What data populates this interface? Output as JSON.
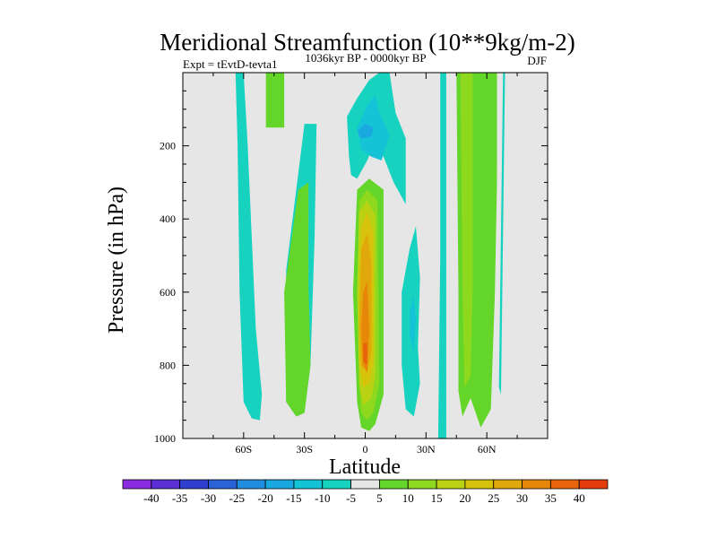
{
  "chart_data": {
    "type": "contour",
    "title": "Meridional Streamfunction (10**9kg/m-2)",
    "subtitle_left": "Expt = tEvtD-tevta1",
    "subtitle_center": "1036kyr BP - 0000kyr BP",
    "subtitle_right": "DJF",
    "xlabel": "Latitude",
    "ylabel": "Pressure (in hPa)",
    "xlim": [
      -90,
      90
    ],
    "ylim": [
      1000,
      0
    ],
    "x_ticks": [
      -60,
      -30,
      0,
      30,
      60
    ],
    "x_tick_labels": [
      "60S",
      "30S",
      "0",
      "30N",
      "60N"
    ],
    "y_ticks": [
      200,
      400,
      600,
      800,
      1000
    ],
    "y_tick_labels": [
      "200",
      "400",
      "600",
      "800",
      "1000"
    ],
    "colorbar": {
      "levels": [
        -40,
        -35,
        -30,
        -25,
        -20,
        -15,
        -10,
        -5,
        5,
        10,
        15,
        20,
        25,
        30,
        35,
        40
      ],
      "labels": [
        "-40",
        "-35",
        "-30",
        "-25",
        "-20",
        "-15",
        "-10",
        "-5",
        "5",
        "10",
        "15",
        "20",
        "25",
        "30",
        "35",
        "40"
      ],
      "colors": [
        "#8a2be2",
        "#5a2fd6",
        "#2f3fd0",
        "#2a62d8",
        "#1f8ee0",
        "#1aa8e0",
        "#14c3d6",
        "#18d2c0",
        "#e6e6e6",
        "#64d62a",
        "#8ed81e",
        "#b9d214",
        "#d7c30c",
        "#e0a80a",
        "#e6870a",
        "#e8640a",
        "#e43c0a"
      ]
    },
    "regions": [
      {
        "name": "sh-polar-negative",
        "value": -5,
        "color": "#18d2c0",
        "outline": [
          [
            -64,
            0
          ],
          [
            -60,
            0
          ],
          [
            -58,
            200
          ],
          [
            -54,
            700
          ],
          [
            -51,
            880
          ],
          [
            -52,
            950
          ],
          [
            -56,
            945
          ],
          [
            -60,
            900
          ],
          [
            -62,
            600
          ],
          [
            -63,
            200
          ]
        ]
      },
      {
        "name": "sh-subpolar-positive",
        "value": 5,
        "color": "#64d62a",
        "outline": [
          [
            -49,
            0
          ],
          [
            -40,
            0
          ],
          [
            -40,
            150
          ],
          [
            -49,
            150
          ]
        ]
      },
      {
        "name": "sh-midlat-negative",
        "value": -5,
        "color": "#18d2c0",
        "outline": [
          [
            -39,
            540
          ],
          [
            -30,
            140
          ],
          [
            -24,
            140
          ],
          [
            -25,
            450
          ],
          [
            -27,
            800
          ],
          [
            -30,
            930
          ],
          [
            -34,
            940
          ],
          [
            -39,
            900
          ]
        ]
      },
      {
        "name": "sh-ferrel-positive",
        "value": 5,
        "color": "#64d62a",
        "outline": [
          [
            -39,
            900
          ],
          [
            -40,
            600
          ],
          [
            -36,
            440
          ],
          [
            -33,
            320
          ],
          [
            -28,
            300
          ],
          [
            -28,
            580
          ],
          [
            -27,
            800
          ],
          [
            -30,
            930
          ],
          [
            -34,
            940
          ]
        ]
      },
      {
        "name": "tropical-upper-negative",
        "value": -5,
        "color": "#18d2c0",
        "outline": [
          [
            -8,
            230
          ],
          [
            -9,
            120
          ],
          [
            -4,
            70
          ],
          [
            2,
            20
          ],
          [
            7,
            0
          ],
          [
            12,
            0
          ],
          [
            15,
            110
          ],
          [
            20,
            180
          ],
          [
            20,
            360
          ],
          [
            14,
            300
          ],
          [
            9,
            230
          ],
          [
            4,
            200
          ],
          [
            1,
            240
          ],
          [
            -4,
            290
          ],
          [
            -7,
            280
          ]
        ]
      },
      {
        "name": "tropical-upper-negative-10",
        "value": -10,
        "color": "#14c3d6",
        "outline": [
          [
            -4,
            150
          ],
          [
            1,
            90
          ],
          [
            5,
            60
          ],
          [
            7,
            110
          ],
          [
            12,
            170
          ],
          [
            8,
            240
          ],
          [
            3,
            230
          ],
          [
            -2,
            210
          ]
        ]
      },
      {
        "name": "tropical-upper-negative-15",
        "value": -15,
        "color": "#1aa8e0",
        "outline": [
          [
            -4,
            160
          ],
          [
            0,
            140
          ],
          [
            4,
            150
          ],
          [
            3,
            175
          ],
          [
            -2,
            180
          ]
        ]
      },
      {
        "name": "hadley-positive-5",
        "value": 5,
        "color": "#64d62a",
        "outline": [
          [
            -4,
            320
          ],
          [
            2,
            290
          ],
          [
            9,
            320
          ],
          [
            9,
            880
          ],
          [
            5,
            960
          ],
          [
            2,
            980
          ],
          [
            -2,
            970
          ],
          [
            -4,
            900
          ],
          [
            -6,
            600
          ]
        ]
      },
      {
        "name": "hadley-positive-10",
        "value": 10,
        "color": "#8ed81e",
        "outline": [
          [
            -3,
            350
          ],
          [
            1,
            320
          ],
          [
            6,
            350
          ],
          [
            7,
            850
          ],
          [
            4,
            930
          ],
          [
            1,
            950
          ],
          [
            -2,
            930
          ],
          [
            -3,
            850
          ],
          [
            -4,
            600
          ]
        ]
      },
      {
        "name": "hadley-positive-15",
        "value": 15,
        "color": "#b9d214",
        "outline": [
          [
            -3,
            380
          ],
          [
            1,
            350
          ],
          [
            5,
            390
          ],
          [
            5,
            830
          ],
          [
            3,
            890
          ],
          [
            -1,
            910
          ],
          [
            -3,
            850
          ],
          [
            -4,
            600
          ]
        ]
      },
      {
        "name": "hadley-positive-20",
        "value": 20,
        "color": "#d7c30c",
        "outline": [
          [
            -2,
            420
          ],
          [
            1,
            380
          ],
          [
            4,
            440
          ],
          [
            4,
            790
          ],
          [
            2,
            850
          ],
          [
            -1,
            860
          ],
          [
            -3,
            790
          ],
          [
            -3,
            600
          ]
        ]
      },
      {
        "name": "hadley-positive-25",
        "value": 25,
        "color": "#e0a80a",
        "outline": [
          [
            -2,
            480
          ],
          [
            1,
            440
          ],
          [
            3,
            520
          ],
          [
            3,
            760
          ],
          [
            1,
            820
          ],
          [
            -2,
            800
          ],
          [
            -3,
            700
          ]
        ]
      },
      {
        "name": "hadley-positive-30",
        "value": 30,
        "color": "#e6870a",
        "outline": [
          [
            -1,
            600
          ],
          [
            1,
            570
          ],
          [
            2,
            700
          ],
          [
            1,
            820
          ],
          [
            -1,
            800
          ],
          [
            -2,
            700
          ]
        ]
      },
      {
        "name": "hadley-positive-35",
        "value": 35,
        "color": "#e8640a",
        "outline": [
          [
            -1,
            740
          ],
          [
            1,
            740
          ],
          [
            1,
            800
          ],
          [
            -1,
            790
          ]
        ]
      },
      {
        "name": "nh-midlat-negative",
        "value": -5,
        "color": "#18d2c0",
        "outline": [
          [
            18,
            600
          ],
          [
            22,
            480
          ],
          [
            25,
            420
          ],
          [
            27,
            560
          ],
          [
            26,
            750
          ],
          [
            27,
            850
          ],
          [
            24,
            940
          ],
          [
            20,
            920
          ],
          [
            18,
            800
          ]
        ]
      },
      {
        "name": "nh-midlat-negative-10",
        "value": -10,
        "color": "#14c3d6",
        "outline": [
          [
            22,
            650
          ],
          [
            24,
            610
          ],
          [
            25,
            680
          ],
          [
            24,
            760
          ],
          [
            22,
            720
          ]
        ]
      },
      {
        "name": "nh-column-negative",
        "value": -5,
        "color": "#18d2c0",
        "outline": [
          [
            37,
            0
          ],
          [
            40,
            0
          ],
          [
            40,
            1000
          ],
          [
            36,
            1000
          ],
          [
            37,
            500
          ]
        ]
      },
      {
        "name": "nh-ferrel-positive",
        "value": 5,
        "color": "#64d62a",
        "outline": [
          [
            45,
            0
          ],
          [
            55,
            0
          ],
          [
            61,
            0
          ],
          [
            65,
            0
          ],
          [
            65,
            300
          ],
          [
            64,
            600
          ],
          [
            62,
            920
          ],
          [
            57,
            970
          ],
          [
            52,
            890
          ],
          [
            48,
            940
          ],
          [
            46,
            870
          ],
          [
            46,
            600
          ]
        ]
      },
      {
        "name": "nh-ferrel-positive-10",
        "value": 10,
        "color": "#8ed81e",
        "outline": [
          [
            47,
            0
          ],
          [
            53,
            0
          ],
          [
            53,
            600
          ],
          [
            52,
            830
          ],
          [
            49,
            860
          ],
          [
            48,
            600
          ]
        ]
      },
      {
        "name": "nh-high-negative",
        "value": -5,
        "color": "#18d2c0",
        "outline": [
          [
            68,
            0
          ],
          [
            69,
            0
          ],
          [
            67,
            880
          ],
          [
            66,
            860
          ]
        ]
      },
      {
        "name": "nh-high-positive",
        "value": 5,
        "color": "#64d62a",
        "outline": [
          [
            63,
            0
          ],
          [
            64,
            0
          ],
          [
            64,
            180
          ],
          [
            63,
            180
          ]
        ]
      }
    ]
  }
}
